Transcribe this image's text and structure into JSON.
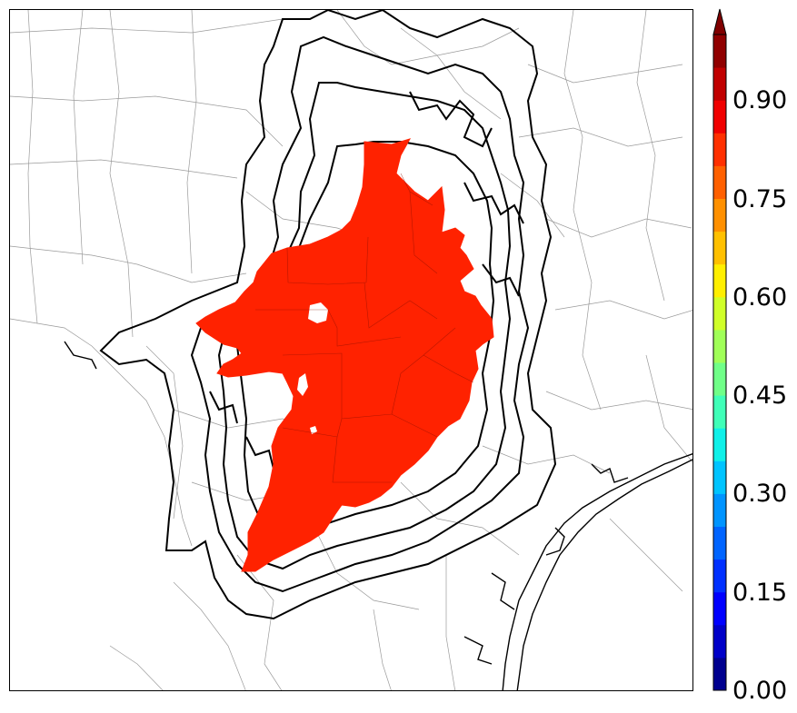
{
  "map": {
    "fill_color": "#ff2200",
    "contour_color": "#000000",
    "county_line_color": "#888888",
    "coast_color": "#000000"
  },
  "colorbar": {
    "min": 0.0,
    "max": 1.0,
    "extend": "max",
    "levels": 20,
    "tick_labels": [
      "0.00",
      "0.15",
      "0.30",
      "0.45",
      "0.60",
      "0.75",
      "0.90"
    ],
    "tick_values": [
      0.0,
      0.15,
      0.3,
      0.45,
      0.6,
      0.75,
      0.9
    ],
    "colors": [
      "#00008f",
      "#0000c8",
      "#0000ff",
      "#0030ff",
      "#0064ff",
      "#0094ff",
      "#00c4ff",
      "#10f0e8",
      "#40ffb8",
      "#70ff88",
      "#a0ff58",
      "#d0ff28",
      "#ffef00",
      "#ffc000",
      "#ff9000",
      "#ff6000",
      "#ff3000",
      "#f00000",
      "#c00000",
      "#900000"
    ],
    "extend_color": "#800000"
  }
}
